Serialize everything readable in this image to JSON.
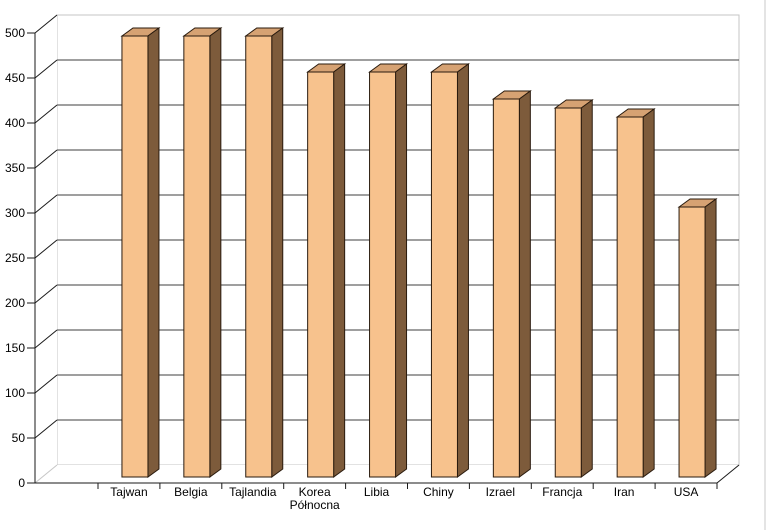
{
  "chart_data": {
    "type": "bar",
    "projection": "3d",
    "title": "",
    "xlabel": "",
    "ylabel": "",
    "categories": [
      "Tajwan",
      "Belgia",
      "Tajlandia",
      "Korea Północna",
      "Libia",
      "Chiny",
      "Izrael",
      "Francja",
      "Iran",
      "USA"
    ],
    "values": [
      490,
      490,
      490,
      450,
      450,
      450,
      420,
      410,
      400,
      300
    ],
    "ylim": [
      0,
      500
    ],
    "ytick_step": 50,
    "ytick_labels": [
      "0",
      "50",
      "100",
      "150",
      "200",
      "250",
      "300",
      "350",
      "400",
      "450",
      "500"
    ],
    "grid": true,
    "legend": false,
    "colors": {
      "background": "#ffffff",
      "bar_front": "#f7c28d",
      "bar_top": "#d6a273",
      "bar_side": "#7d5b3b",
      "bar_outline": "#2a1b0e",
      "gridline": "#3f3f3f",
      "axis": "#1a1a1a",
      "wall_edge": "#c6c6c6",
      "label_text": "#000000",
      "window_edge": "#c8c8c8"
    }
  }
}
